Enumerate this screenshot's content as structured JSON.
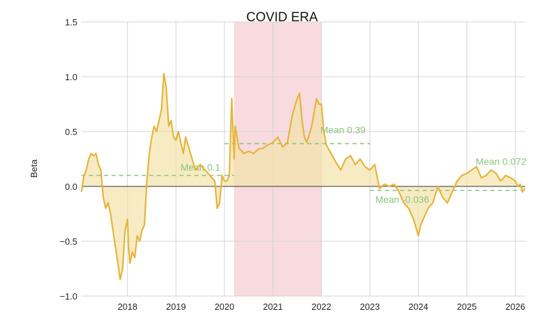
{
  "chart_data": {
    "type": "area",
    "title": "COVID ERA",
    "xlabel": "",
    "ylabel": "Beta",
    "xlim": [
      2017.05,
      2026.2
    ],
    "ylim": [
      -1.0,
      1.5
    ],
    "grid": true,
    "x_ticks": [
      2018,
      2019,
      2020,
      2021,
      2022,
      2023,
      2024,
      2025,
      2026
    ],
    "x_tick_labels": [
      "2018",
      "2019",
      "2020",
      "2021",
      "2022",
      "2023",
      "2024",
      "2025",
      "2026"
    ],
    "y_ticks": [
      1.5,
      1.0,
      0.5,
      0.0,
      -0.5,
      -1.0
    ],
    "y_tick_labels": [
      "1.5",
      "1.0",
      "0.5",
      "0.0",
      "−0.5",
      "−1.0"
    ],
    "zero_line": 0.0,
    "colors": {
      "line": "#e6b43c",
      "fill": "#f2e2aa",
      "shade": "#f6cfd3",
      "mean": "#8cc47c",
      "grid": "#d3d3d3",
      "zero": "#333333"
    },
    "shaded_region": {
      "label": "COVID ERA",
      "x_start": 2020.2,
      "x_end": 2022.0
    },
    "means": [
      {
        "label": "Mean 0.1",
        "value": 0.1,
        "x_start": 2017.05,
        "x_end": 2020.2
      },
      {
        "label": "Mean 0.39",
        "value": 0.39,
        "x_start": 2020.0,
        "x_end": 2023.0
      },
      {
        "label": "Mean -0.036",
        "value": -0.036,
        "x_start": 2023.0,
        "x_end": 2026.2
      },
      {
        "label": "Mean 0.072",
        "value": 0.072,
        "x_start": 2024.8,
        "x_end": 2026.2
      }
    ],
    "series": [
      {
        "name": "Beta",
        "x": [
          2017.05,
          2017.1,
          2017.15,
          2017.2,
          2017.25,
          2017.3,
          2017.35,
          2017.4,
          2017.45,
          2017.5,
          2017.55,
          2017.6,
          2017.65,
          2017.7,
          2017.75,
          2017.8,
          2017.85,
          2017.9,
          2017.95,
          2018.0,
          2018.02,
          2018.05,
          2018.1,
          2018.15,
          2018.2,
          2018.25,
          2018.3,
          2018.35,
          2018.4,
          2018.45,
          2018.5,
          2018.55,
          2018.6,
          2018.65,
          2018.7,
          2018.75,
          2018.8,
          2018.85,
          2018.9,
          2018.95,
          2019.0,
          2019.05,
          2019.1,
          2019.15,
          2019.2,
          2019.3,
          2019.4,
          2019.5,
          2019.6,
          2019.7,
          2019.8,
          2019.85,
          2019.9,
          2019.95,
          2020.0,
          2020.05,
          2020.1,
          2020.15,
          2020.2,
          2020.22,
          2020.3,
          2020.4,
          2020.5,
          2020.6,
          2020.7,
          2020.8,
          2020.9,
          2021.0,
          2021.1,
          2021.2,
          2021.3,
          2021.4,
          2021.5,
          2021.55,
          2021.6,
          2021.65,
          2021.7,
          2021.8,
          2021.9,
          2021.95,
          2022.0,
          2022.05,
          2022.1,
          2022.2,
          2022.3,
          2022.4,
          2022.5,
          2022.6,
          2022.7,
          2022.8,
          2022.9,
          2023.0,
          2023.1,
          2023.2,
          2023.3,
          2023.4,
          2023.5,
          2023.6,
          2023.7,
          2023.8,
          2023.9,
          2024.0,
          2024.05,
          2024.1,
          2024.2,
          2024.3,
          2024.4,
          2024.5,
          2024.6,
          2024.7,
          2024.8,
          2024.9,
          2025.0,
          2025.1,
          2025.2,
          2025.3,
          2025.4,
          2025.5,
          2025.6,
          2025.7,
          2025.8,
          2025.9,
          2026.0,
          2026.05,
          2026.1,
          2026.15,
          2026.2
        ],
        "values": [
          -0.05,
          0.1,
          0.15,
          0.25,
          0.3,
          0.28,
          0.3,
          0.2,
          0.15,
          -0.1,
          -0.2,
          -0.15,
          -0.25,
          -0.4,
          -0.55,
          -0.7,
          -0.85,
          -0.75,
          -0.4,
          -0.3,
          -0.55,
          -0.7,
          -0.6,
          -0.65,
          -0.45,
          -0.5,
          -0.4,
          -0.35,
          0.05,
          0.3,
          0.45,
          0.55,
          0.5,
          0.6,
          0.7,
          1.03,
          0.9,
          0.55,
          0.6,
          0.45,
          0.42,
          0.5,
          0.4,
          0.3,
          0.45,
          0.3,
          0.15,
          0.2,
          0.15,
          0.1,
          0.05,
          -0.2,
          -0.15,
          0.1,
          0.05,
          0.05,
          0.1,
          0.8,
          0.25,
          0.55,
          0.35,
          0.3,
          0.32,
          0.3,
          0.34,
          0.35,
          0.38,
          0.4,
          0.45,
          0.36,
          0.4,
          0.65,
          0.8,
          0.85,
          0.6,
          0.45,
          0.4,
          0.55,
          0.8,
          0.75,
          0.75,
          0.5,
          0.38,
          0.3,
          0.22,
          0.15,
          0.25,
          0.28,
          0.2,
          0.25,
          0.18,
          0.15,
          0.2,
          -0.02,
          0.02,
          0.0,
          0.02,
          -0.05,
          -0.15,
          -0.2,
          -0.3,
          -0.45,
          -0.35,
          -0.3,
          -0.2,
          -0.15,
          0.0,
          -0.1,
          -0.15,
          -0.05,
          0.05,
          0.1,
          0.12,
          0.15,
          0.18,
          0.08,
          0.1,
          0.15,
          0.12,
          0.05,
          0.1,
          0.08,
          0.05,
          0.0,
          0.02,
          -0.05,
          -0.02
        ]
      }
    ]
  }
}
